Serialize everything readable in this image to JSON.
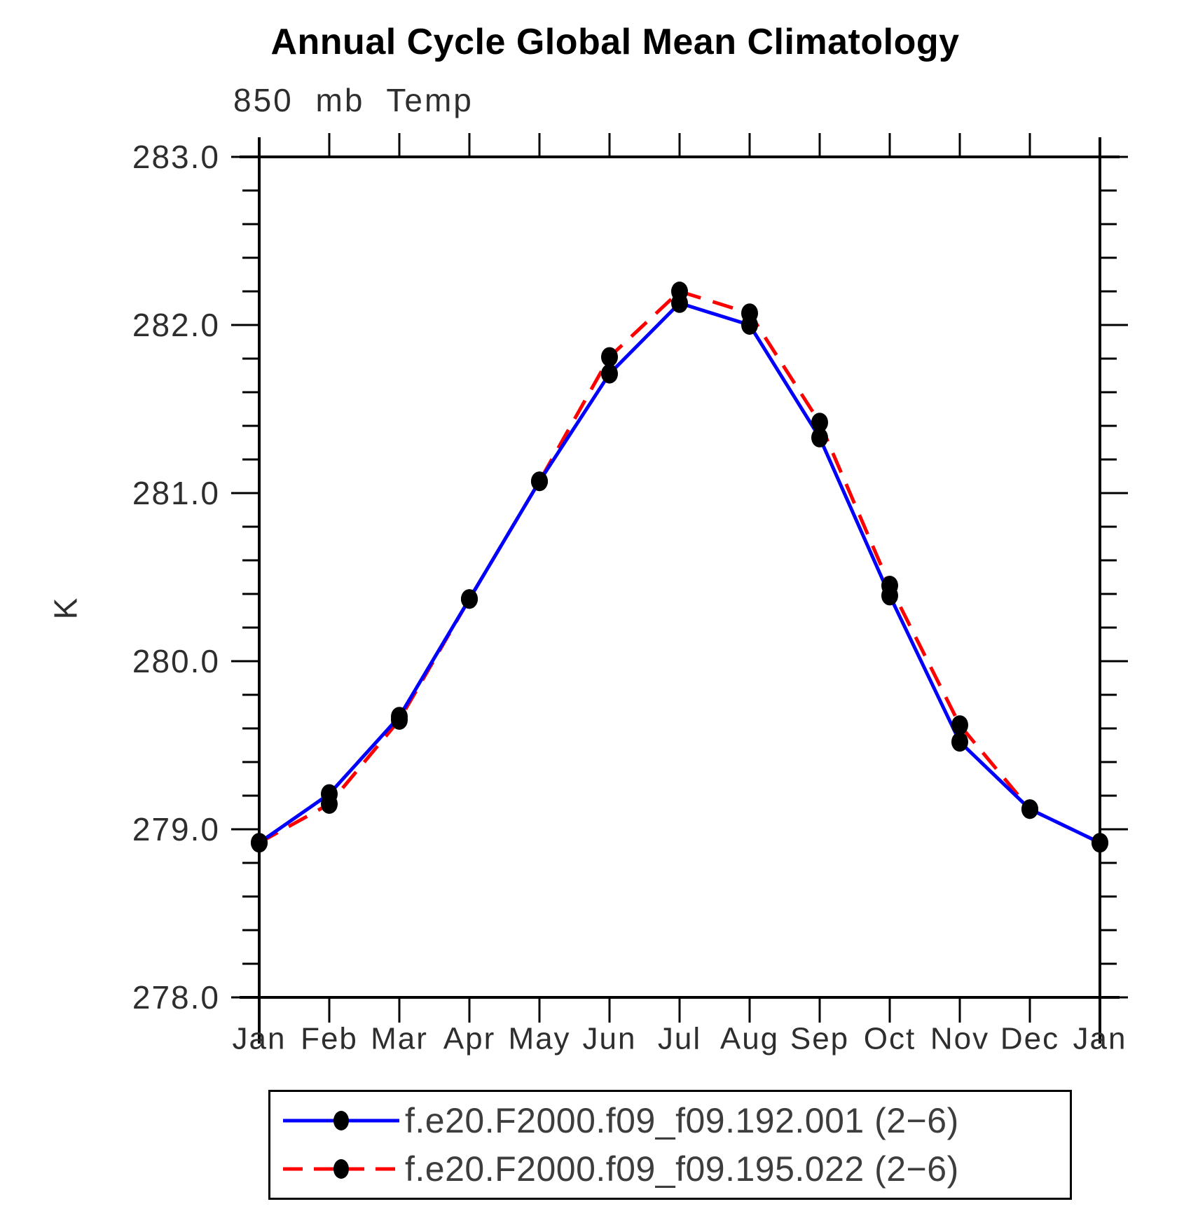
{
  "chart": {
    "title": "Annual Cycle Global Mean Climatology",
    "subtitle": "850 mb Temp",
    "ylabel": "K"
  },
  "chart_data": {
    "type": "line",
    "title": "Annual Cycle Global Mean Climatology",
    "subtitle": "850 mb Temp",
    "xlabel": "",
    "ylabel": "K",
    "categories": [
      "Jan",
      "Feb",
      "Mar",
      "Apr",
      "May",
      "Jun",
      "Jul",
      "Aug",
      "Sep",
      "Oct",
      "Nov",
      "Dec",
      "Jan"
    ],
    "ylim": [
      278.0,
      283.0
    ],
    "ytick_interval": 1.0,
    "ytick_minor_interval": 0.2,
    "ytick_labels": [
      "278.0",
      "279.0",
      "280.0",
      "281.0",
      "282.0",
      "283.0"
    ],
    "grid": false,
    "legend_position": "bottom",
    "marker": "filled-black-dot",
    "marker_color": "#000000",
    "frame_color": "#000000",
    "series": [
      {
        "name": "f.e20.F2000.f09_f09.192.001 (2−6)",
        "color": "#0000ff",
        "line_style": "solid",
        "values": [
          278.92,
          279.21,
          279.67,
          280.37,
          281.07,
          281.71,
          282.13,
          282.0,
          281.33,
          280.39,
          279.52,
          279.12,
          278.92
        ]
      },
      {
        "name": "f.e20.F2000.f09_f09.195.022 (2−6)",
        "color": "#ff0000",
        "line_style": "dashed",
        "values": [
          278.92,
          279.15,
          279.65,
          280.37,
          281.07,
          281.81,
          282.2,
          282.07,
          281.42,
          280.45,
          279.62,
          279.12,
          278.92
        ]
      }
    ]
  }
}
